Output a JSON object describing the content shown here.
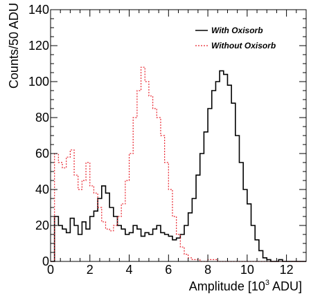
{
  "chart_data": {
    "type": "line",
    "title": "",
    "xlabel": {
      "prefix": "Amplitude [10",
      "sup": "3",
      "suffix": " ADU]"
    },
    "ylabel": "Counts/50 ADU",
    "xlim": [
      0,
      13
    ],
    "ylim": [
      0,
      140
    ],
    "xticks": [
      0,
      2,
      4,
      6,
      8,
      10,
      12
    ],
    "yticks": [
      0,
      20,
      40,
      60,
      80,
      100,
      120,
      140
    ],
    "grid": false,
    "legend_position": "top-right",
    "colors": {
      "with_oxisorb": "#000000",
      "without_oxisorb": "#e8202a"
    },
    "series": [
      {
        "name": "With Oxisorb",
        "style": "solid",
        "x": [
          0.0,
          0.2,
          0.4,
          0.6,
          0.8,
          1.0,
          1.2,
          1.4,
          1.6,
          1.8,
          2.0,
          2.2,
          2.4,
          2.6,
          2.8,
          3.0,
          3.2,
          3.4,
          3.6,
          3.8,
          4.0,
          4.2,
          4.4,
          4.6,
          4.8,
          5.0,
          5.2,
          5.4,
          5.6,
          5.8,
          6.0,
          6.2,
          6.4,
          6.6,
          6.8,
          7.0,
          7.2,
          7.4,
          7.6,
          7.8,
          8.0,
          8.2,
          8.4,
          8.6,
          8.8,
          9.0,
          9.2,
          9.4,
          9.6,
          9.8,
          10.0,
          10.2,
          10.4,
          10.6,
          10.8,
          11.0,
          11.2,
          11.4,
          11.6,
          11.8,
          12.0,
          12.5,
          13.0
        ],
        "values": [
          0,
          25,
          20,
          18,
          16,
          24,
          20,
          15,
          22,
          18,
          25,
          28,
          35,
          42,
          38,
          30,
          25,
          20,
          18,
          15,
          16,
          20,
          18,
          14,
          16,
          15,
          18,
          20,
          16,
          15,
          14,
          12,
          13,
          15,
          20,
          27,
          35,
          48,
          60,
          72,
          85,
          95,
          100,
          106,
          104,
          98,
          88,
          70,
          55,
          40,
          32,
          20,
          12,
          6,
          2,
          1,
          0,
          0,
          1,
          0,
          0,
          0,
          0
        ]
      },
      {
        "name": "Without Oxisorb",
        "style": "dashed",
        "x": [
          0.0,
          0.2,
          0.4,
          0.6,
          0.8,
          1.0,
          1.2,
          1.4,
          1.6,
          1.8,
          2.0,
          2.2,
          2.4,
          2.6,
          2.8,
          3.0,
          3.2,
          3.4,
          3.6,
          3.8,
          4.0,
          4.2,
          4.4,
          4.6,
          4.8,
          5.0,
          5.2,
          5.4,
          5.6,
          5.8,
          6.0,
          6.2,
          6.4,
          6.6,
          6.8,
          7.0,
          7.2,
          7.4,
          7.6,
          7.8,
          8.0,
          8.5,
          9.0,
          9.5,
          10.0,
          10.5,
          11.0,
          12.0,
          13.0
        ],
        "values": [
          0,
          60,
          55,
          52,
          58,
          62,
          48,
          40,
          45,
          55,
          42,
          38,
          30,
          22,
          18,
          17,
          20,
          25,
          32,
          45,
          60,
          80,
          95,
          108,
          100,
          92,
          85,
          80,
          70,
          55,
          40,
          25,
          15,
          8,
          4,
          2,
          1,
          1,
          0,
          0,
          1,
          0,
          0,
          0,
          0,
          0,
          0,
          0,
          0
        ]
      }
    ]
  }
}
